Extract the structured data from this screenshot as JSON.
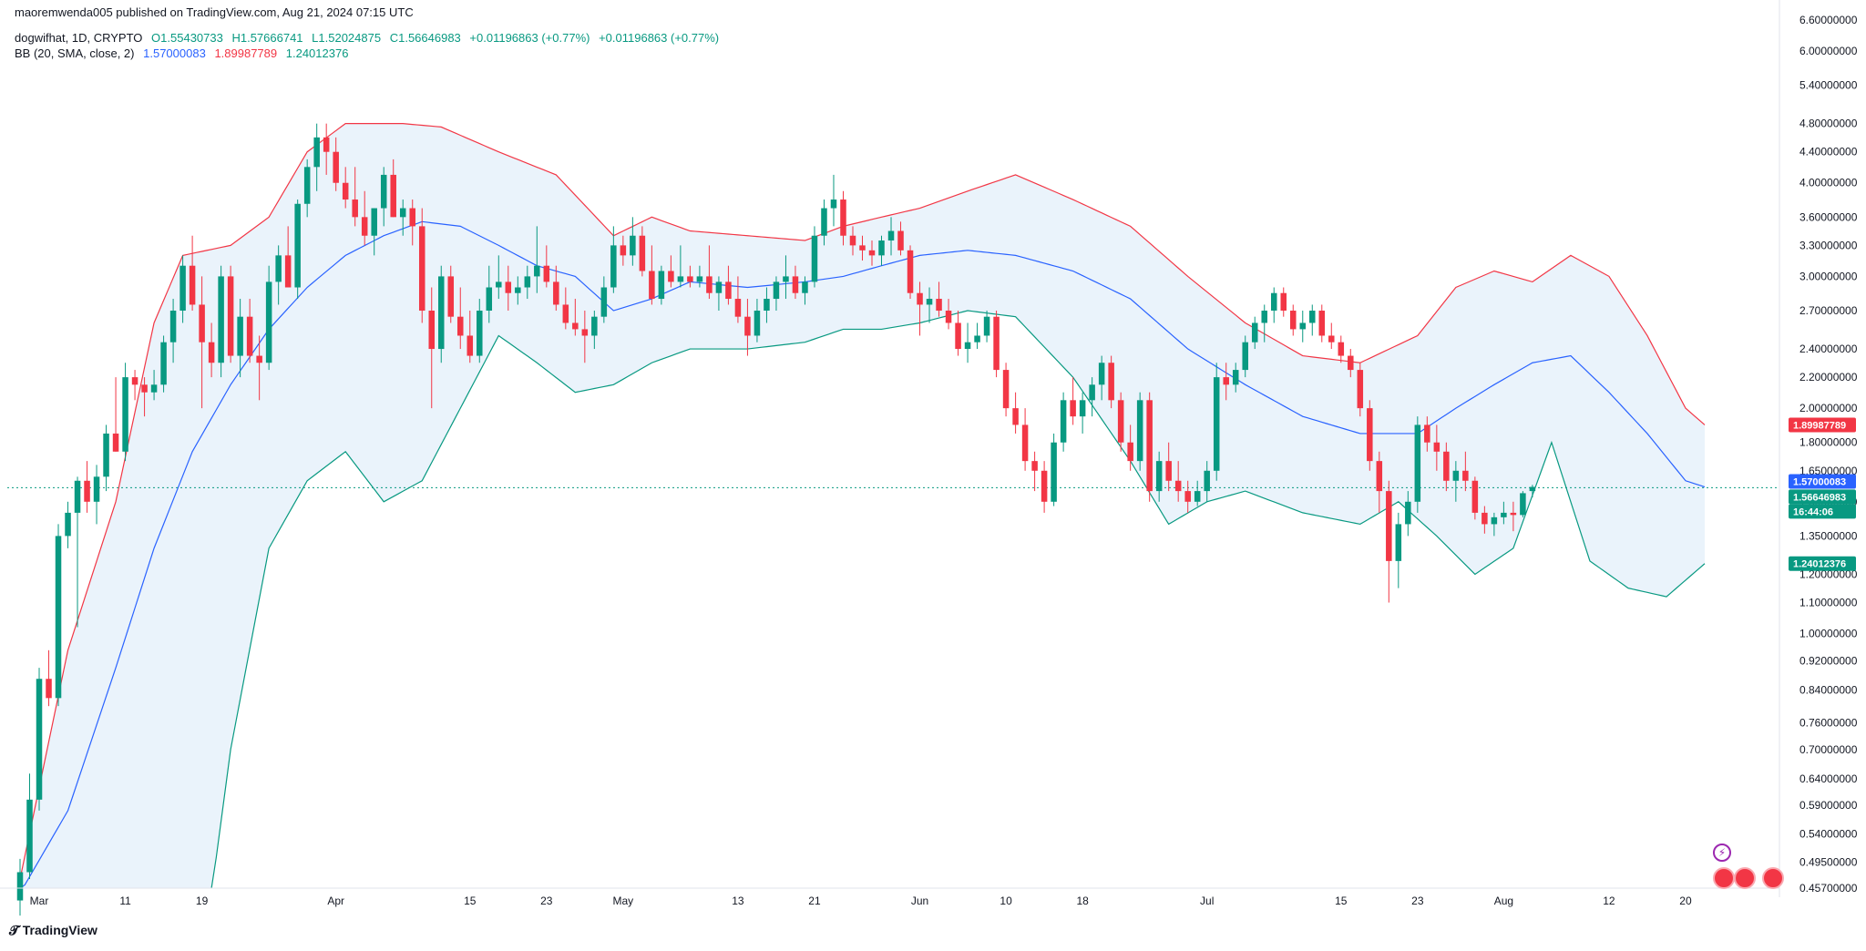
{
  "header": {
    "published": "maoremwenda005 published on TradingView.com, Aug 21, 2024 07:15 UTC",
    "symbol_line": "dogwifhat, 1D, CRYPTO",
    "open": "O1.55430733",
    "high": "H1.57666741",
    "low": "L1.52024875",
    "close": "C1.56646983",
    "change1": "+0.01196863 (+0.77%)",
    "change2": "+0.01196863 (+0.77%)",
    "bb_label": "BB (20, SMA, close, 2)",
    "bb_basis": "1.57000083",
    "bb_upper": "1.89987789",
    "bb_lower": "1.24012376"
  },
  "price_labels": {
    "upper": {
      "text": "1.89987789",
      "color": "#f23645",
      "value": 1.89987789
    },
    "basis": {
      "text": "1.57000083",
      "color": "#2962ff",
      "value": 1.57000083
    },
    "last": {
      "text": "1.56646983",
      "color": "#089981",
      "value": 1.56646983
    },
    "countdown": {
      "text": "16:44:06",
      "color": "#089981"
    },
    "lower": {
      "text": "1.24012376",
      "color": "#089981",
      "value": 1.24012376
    }
  },
  "footer": {
    "brand": "TradingView"
  },
  "colors": {
    "up": "#089981",
    "down": "#f23645",
    "basis": "#2962ff",
    "upper": "#f23645",
    "lower": "#089981",
    "fill": "#eaf3fb"
  },
  "chart_data": {
    "type": "candlestick",
    "scale": "log",
    "y_ticks": [
      0.457,
      0.495,
      0.54,
      0.59,
      0.64,
      0.7,
      0.76,
      0.84,
      0.92,
      1.0,
      1.1,
      1.2,
      1.35,
      1.5,
      1.65,
      1.8,
      2.0,
      2.2,
      2.4,
      2.7,
      3.0,
      3.3,
      3.6,
      4.0,
      4.4,
      4.8,
      5.4,
      6.0,
      6.6
    ],
    "y_tick_labels": [
      "0.45700000",
      "0.49500000",
      "0.54000000",
      "0.59000000",
      "0.64000000",
      "0.70000000",
      "0.76000000",
      "0.84000000",
      "0.92000000",
      "1.00000000",
      "1.10000000",
      "1.20000000",
      "1.35000000",
      "1.50000000",
      "1.65000000",
      "1.80000000",
      "2.00000000",
      "2.20000000",
      "2.40000000",
      "2.70000000",
      "3.00000000",
      "3.30000000",
      "3.60000000",
      "4.00000000",
      "4.40000000",
      "4.80000000",
      "5.40000000",
      "6.00000000",
      "6.60000000"
    ],
    "x_labels": [
      {
        "label": "Mar",
        "day": 2
      },
      {
        "label": "11",
        "day": 11
      },
      {
        "label": "19",
        "day": 19
      },
      {
        "label": "Apr",
        "day": 33
      },
      {
        "label": "15",
        "day": 47
      },
      {
        "label": "23",
        "day": 55
      },
      {
        "label": "May",
        "day": 63
      },
      {
        "label": "13",
        "day": 75
      },
      {
        "label": "21",
        "day": 83
      },
      {
        "label": "Jun",
        "day": 94
      },
      {
        "label": "10",
        "day": 103
      },
      {
        "label": "18",
        "day": 111
      },
      {
        "label": "Jul",
        "day": 124
      },
      {
        "label": "15",
        "day": 138
      },
      {
        "label": "23",
        "day": 146
      },
      {
        "label": "Aug",
        "day": 155
      },
      {
        "label": "12",
        "day": 166
      },
      {
        "label": "20",
        "day": 174
      }
    ],
    "x_range": [
      0,
      176
    ],
    "ohlc_days_from": "Feb 29",
    "ohlc": [
      [
        0.44,
        0.5,
        0.42,
        0.48
      ],
      [
        0.48,
        0.65,
        0.47,
        0.6
      ],
      [
        0.6,
        0.9,
        0.58,
        0.87
      ],
      [
        0.87,
        0.95,
        0.8,
        0.82
      ],
      [
        0.82,
        1.4,
        0.8,
        1.35
      ],
      [
        1.35,
        1.5,
        1.3,
        1.45
      ],
      [
        1.45,
        1.62,
        1.02,
        1.6
      ],
      [
        1.6,
        1.7,
        1.45,
        1.5
      ],
      [
        1.5,
        1.68,
        1.4,
        1.62
      ],
      [
        1.62,
        1.9,
        1.55,
        1.85
      ],
      [
        1.85,
        2.2,
        1.75,
        1.75
      ],
      [
        1.75,
        2.3,
        1.7,
        2.2
      ],
      [
        2.2,
        2.25,
        2.05,
        2.15
      ],
      [
        2.15,
        2.2,
        1.95,
        2.1
      ],
      [
        2.1,
        2.25,
        2.05,
        2.15
      ],
      [
        2.15,
        2.5,
        2.1,
        2.45
      ],
      [
        2.45,
        2.8,
        2.3,
        2.7
      ],
      [
        2.7,
        3.2,
        2.6,
        3.1
      ],
      [
        3.1,
        3.4,
        2.7,
        2.75
      ],
      [
        2.75,
        3.0,
        2.0,
        2.45
      ],
      [
        2.45,
        2.6,
        2.2,
        2.3
      ],
      [
        2.3,
        3.1,
        2.2,
        3.0
      ],
      [
        3.0,
        3.1,
        2.3,
        2.35
      ],
      [
        2.35,
        2.8,
        2.2,
        2.65
      ],
      [
        2.65,
        2.8,
        2.3,
        2.35
      ],
      [
        2.35,
        2.5,
        2.05,
        2.3
      ],
      [
        2.3,
        3.1,
        2.25,
        2.95
      ],
      [
        2.95,
        3.3,
        2.75,
        3.2
      ],
      [
        3.2,
        3.5,
        2.9,
        2.9
      ],
      [
        2.9,
        3.8,
        2.8,
        3.75
      ],
      [
        3.75,
        4.3,
        3.6,
        4.2
      ],
      [
        4.2,
        4.8,
        3.9,
        4.6
      ],
      [
        4.6,
        4.8,
        4.1,
        4.4
      ],
      [
        4.4,
        4.6,
        3.9,
        4.0
      ],
      [
        4.0,
        4.2,
        3.7,
        3.8
      ],
      [
        3.8,
        4.2,
        3.5,
        3.6
      ],
      [
        3.6,
        3.9,
        3.3,
        3.4
      ],
      [
        3.4,
        3.7,
        3.2,
        3.7
      ],
      [
        3.7,
        4.2,
        3.5,
        4.1
      ],
      [
        4.1,
        4.3,
        3.6,
        3.6
      ],
      [
        3.6,
        3.8,
        3.4,
        3.7
      ],
      [
        3.7,
        3.8,
        3.3,
        3.5
      ],
      [
        3.5,
        3.7,
        2.6,
        2.7
      ],
      [
        2.7,
        2.9,
        2.0,
        2.4
      ],
      [
        2.4,
        3.1,
        2.3,
        3.0
      ],
      [
        3.0,
        3.1,
        2.6,
        2.65
      ],
      [
        2.65,
        2.9,
        2.4,
        2.5
      ],
      [
        2.5,
        2.7,
        2.3,
        2.35
      ],
      [
        2.35,
        2.8,
        2.3,
        2.7
      ],
      [
        2.7,
        3.1,
        2.6,
        2.9
      ],
      [
        2.9,
        3.2,
        2.8,
        2.95
      ],
      [
        2.95,
        3.1,
        2.7,
        2.85
      ],
      [
        2.85,
        3.0,
        2.75,
        2.9
      ],
      [
        2.9,
        3.1,
        2.8,
        3.0
      ],
      [
        3.0,
        3.5,
        2.85,
        3.1
      ],
      [
        3.1,
        3.3,
        2.9,
        2.95
      ],
      [
        2.95,
        3.1,
        2.7,
        2.75
      ],
      [
        2.75,
        2.9,
        2.55,
        2.6
      ],
      [
        2.6,
        2.8,
        2.5,
        2.55
      ],
      [
        2.55,
        2.7,
        2.3,
        2.5
      ],
      [
        2.5,
        2.7,
        2.4,
        2.65
      ],
      [
        2.65,
        3.0,
        2.6,
        2.9
      ],
      [
        2.9,
        3.5,
        2.85,
        3.3
      ],
      [
        3.3,
        3.4,
        3.1,
        3.2
      ],
      [
        3.2,
        3.6,
        3.1,
        3.4
      ],
      [
        3.4,
        3.5,
        3.0,
        3.05
      ],
      [
        3.05,
        3.3,
        2.75,
        2.8
      ],
      [
        2.8,
        3.1,
        2.75,
        3.05
      ],
      [
        3.05,
        3.2,
        2.9,
        2.95
      ],
      [
        2.95,
        3.3,
        2.9,
        3.0
      ],
      [
        3.0,
        3.1,
        2.9,
        2.95
      ],
      [
        2.95,
        3.1,
        2.9,
        3.0
      ],
      [
        3.0,
        3.3,
        2.8,
        2.85
      ],
      [
        2.85,
        3.0,
        2.7,
        2.95
      ],
      [
        2.95,
        3.1,
        2.75,
        2.8
      ],
      [
        2.8,
        3.0,
        2.6,
        2.65
      ],
      [
        2.65,
        2.8,
        2.35,
        2.5
      ],
      [
        2.5,
        2.8,
        2.45,
        2.7
      ],
      [
        2.7,
        2.9,
        2.6,
        2.8
      ],
      [
        2.8,
        3.0,
        2.7,
        2.95
      ],
      [
        2.95,
        3.2,
        2.8,
        3.0
      ],
      [
        3.0,
        3.1,
        2.8,
        2.85
      ],
      [
        2.85,
        3.0,
        2.75,
        2.95
      ],
      [
        2.95,
        3.5,
        2.9,
        3.4
      ],
      [
        3.4,
        3.8,
        3.3,
        3.7
      ],
      [
        3.7,
        4.1,
        3.5,
        3.8
      ],
      [
        3.8,
        3.9,
        3.3,
        3.4
      ],
      [
        3.4,
        3.5,
        3.2,
        3.3
      ],
      [
        3.3,
        3.4,
        3.15,
        3.25
      ],
      [
        3.25,
        3.35,
        3.1,
        3.2
      ],
      [
        3.2,
        3.4,
        3.1,
        3.35
      ],
      [
        3.35,
        3.6,
        3.2,
        3.45
      ],
      [
        3.45,
        3.55,
        3.2,
        3.25
      ],
      [
        3.25,
        3.3,
        2.8,
        2.85
      ],
      [
        2.85,
        2.95,
        2.5,
        2.75
      ],
      [
        2.75,
        2.9,
        2.6,
        2.8
      ],
      [
        2.8,
        2.95,
        2.65,
        2.7
      ],
      [
        2.7,
        2.8,
        2.55,
        2.6
      ],
      [
        2.6,
        2.7,
        2.35,
        2.4
      ],
      [
        2.4,
        2.6,
        2.3,
        2.45
      ],
      [
        2.45,
        2.6,
        2.4,
        2.5
      ],
      [
        2.5,
        2.7,
        2.45,
        2.65
      ],
      [
        2.65,
        2.7,
        2.2,
        2.25
      ],
      [
        2.25,
        2.3,
        1.95,
        2.0
      ],
      [
        2.0,
        2.1,
        1.85,
        1.9
      ],
      [
        1.9,
        2.0,
        1.65,
        1.7
      ],
      [
        1.7,
        1.75,
        1.55,
        1.65
      ],
      [
        1.65,
        1.7,
        1.45,
        1.5
      ],
      [
        1.5,
        1.85,
        1.48,
        1.8
      ],
      [
        1.8,
        2.1,
        1.75,
        2.05
      ],
      [
        2.05,
        2.2,
        1.9,
        1.95
      ],
      [
        1.95,
        2.1,
        1.85,
        2.05
      ],
      [
        2.05,
        2.2,
        1.95,
        2.15
      ],
      [
        2.15,
        2.35,
        2.05,
        2.3
      ],
      [
        2.3,
        2.35,
        2.0,
        2.05
      ],
      [
        2.05,
        2.1,
        1.75,
        1.8
      ],
      [
        1.8,
        1.9,
        1.65,
        1.7
      ],
      [
        1.7,
        2.1,
        1.65,
        2.05
      ],
      [
        2.05,
        2.1,
        1.5,
        1.55
      ],
      [
        1.55,
        1.75,
        1.5,
        1.7
      ],
      [
        1.7,
        1.8,
        1.55,
        1.6
      ],
      [
        1.6,
        1.7,
        1.5,
        1.55
      ],
      [
        1.55,
        1.6,
        1.45,
        1.5
      ],
      [
        1.5,
        1.6,
        1.48,
        1.55
      ],
      [
        1.55,
        1.7,
        1.5,
        1.65
      ],
      [
        1.65,
        2.3,
        1.6,
        2.2
      ],
      [
        2.2,
        2.3,
        2.05,
        2.15
      ],
      [
        2.15,
        2.3,
        2.1,
        2.25
      ],
      [
        2.25,
        2.5,
        2.2,
        2.45
      ],
      [
        2.45,
        2.65,
        2.4,
        2.6
      ],
      [
        2.6,
        2.75,
        2.45,
        2.7
      ],
      [
        2.7,
        2.9,
        2.6,
        2.85
      ],
      [
        2.85,
        2.9,
        2.65,
        2.7
      ],
      [
        2.7,
        2.75,
        2.5,
        2.55
      ],
      [
        2.55,
        2.7,
        2.45,
        2.6
      ],
      [
        2.6,
        2.75,
        2.5,
        2.7
      ],
      [
        2.7,
        2.75,
        2.45,
        2.5
      ],
      [
        2.5,
        2.6,
        2.4,
        2.45
      ],
      [
        2.45,
        2.5,
        2.3,
        2.35
      ],
      [
        2.35,
        2.4,
        2.2,
        2.25
      ],
      [
        2.25,
        2.3,
        1.95,
        2.0
      ],
      [
        2.0,
        2.05,
        1.65,
        1.7
      ],
      [
        1.7,
        1.75,
        1.45,
        1.55
      ],
      [
        1.55,
        1.6,
        1.1,
        1.25
      ],
      [
        1.25,
        1.45,
        1.15,
        1.4
      ],
      [
        1.4,
        1.55,
        1.35,
        1.5
      ],
      [
        1.5,
        1.95,
        1.45,
        1.9
      ],
      [
        1.9,
        1.95,
        1.75,
        1.8
      ],
      [
        1.8,
        1.9,
        1.65,
        1.75
      ],
      [
        1.75,
        1.8,
        1.55,
        1.6
      ],
      [
        1.6,
        1.7,
        1.5,
        1.65
      ],
      [
        1.65,
        1.75,
        1.55,
        1.6
      ],
      [
        1.6,
        1.62,
        1.42,
        1.45
      ],
      [
        1.45,
        1.48,
        1.36,
        1.4
      ],
      [
        1.4,
        1.45,
        1.35,
        1.43
      ],
      [
        1.43,
        1.5,
        1.4,
        1.45
      ],
      [
        1.45,
        1.5,
        1.37,
        1.44
      ],
      [
        1.44,
        1.55,
        1.43,
        1.54
      ],
      [
        1.55,
        1.58,
        1.52,
        1.57
      ]
    ],
    "bb_upper_anchors": [
      [
        0,
        0.47
      ],
      [
        5,
        0.95
      ],
      [
        10,
        1.5
      ],
      [
        14,
        2.6
      ],
      [
        17,
        3.2
      ],
      [
        22,
        3.3
      ],
      [
        26,
        3.6
      ],
      [
        30,
        4.4
      ],
      [
        34,
        4.8
      ],
      [
        40,
        4.8
      ],
      [
        44,
        4.75
      ],
      [
        50,
        4.4
      ],
      [
        56,
        4.1
      ],
      [
        62,
        3.4
      ],
      [
        66,
        3.6
      ],
      [
        70,
        3.45
      ],
      [
        76,
        3.4
      ],
      [
        82,
        3.35
      ],
      [
        86,
        3.5
      ],
      [
        90,
        3.6
      ],
      [
        94,
        3.7
      ],
      [
        99,
        3.9
      ],
      [
        104,
        4.1
      ],
      [
        110,
        3.8
      ],
      [
        116,
        3.5
      ],
      [
        122,
        3.0
      ],
      [
        128,
        2.6
      ],
      [
        134,
        2.35
      ],
      [
        140,
        2.3
      ],
      [
        146,
        2.5
      ],
      [
        150,
        2.9
      ],
      [
        154,
        3.05
      ],
      [
        158,
        2.95
      ],
      [
        162,
        3.2
      ],
      [
        166,
        3.0
      ],
      [
        170,
        2.5
      ],
      [
        174,
        2.0
      ],
      [
        176,
        1.9
      ]
    ],
    "bb_basis_anchors": [
      [
        0,
        0.45
      ],
      [
        5,
        0.58
      ],
      [
        10,
        0.9
      ],
      [
        14,
        1.3
      ],
      [
        18,
        1.75
      ],
      [
        22,
        2.15
      ],
      [
        26,
        2.55
      ],
      [
        30,
        2.9
      ],
      [
        34,
        3.2
      ],
      [
        38,
        3.4
      ],
      [
        42,
        3.55
      ],
      [
        46,
        3.5
      ],
      [
        50,
        3.3
      ],
      [
        54,
        3.1
      ],
      [
        58,
        3.0
      ],
      [
        62,
        2.7
      ],
      [
        66,
        2.8
      ],
      [
        70,
        2.95
      ],
      [
        76,
        2.9
      ],
      [
        82,
        2.95
      ],
      [
        86,
        3.0
      ],
      [
        90,
        3.1
      ],
      [
        94,
        3.2
      ],
      [
        99,
        3.25
      ],
      [
        104,
        3.2
      ],
      [
        110,
        3.05
      ],
      [
        116,
        2.8
      ],
      [
        122,
        2.4
      ],
      [
        128,
        2.15
      ],
      [
        134,
        1.95
      ],
      [
        140,
        1.85
      ],
      [
        146,
        1.85
      ],
      [
        150,
        2.0
      ],
      [
        154,
        2.15
      ],
      [
        158,
        2.3
      ],
      [
        162,
        2.35
      ],
      [
        166,
        2.1
      ],
      [
        170,
        1.85
      ],
      [
        174,
        1.6
      ],
      [
        176,
        1.57
      ]
    ],
    "bb_lower_anchors": [
      [
        20,
        0.45
      ],
      [
        22,
        0.7
      ],
      [
        26,
        1.3
      ],
      [
        30,
        1.6
      ],
      [
        34,
        1.75
      ],
      [
        38,
        1.5
      ],
      [
        42,
        1.6
      ],
      [
        46,
        2.0
      ],
      [
        50,
        2.5
      ],
      [
        54,
        2.3
      ],
      [
        58,
        2.1
      ],
      [
        62,
        2.15
      ],
      [
        66,
        2.3
      ],
      [
        70,
        2.4
      ],
      [
        76,
        2.4
      ],
      [
        82,
        2.45
      ],
      [
        86,
        2.55
      ],
      [
        90,
        2.55
      ],
      [
        94,
        2.6
      ],
      [
        99,
        2.7
      ],
      [
        104,
        2.65
      ],
      [
        110,
        2.2
      ],
      [
        116,
        1.7
      ],
      [
        120,
        1.4
      ],
      [
        124,
        1.5
      ],
      [
        128,
        1.55
      ],
      [
        134,
        1.45
      ],
      [
        140,
        1.4
      ],
      [
        144,
        1.5
      ],
      [
        148,
        1.35
      ],
      [
        152,
        1.2
      ],
      [
        156,
        1.3
      ],
      [
        160,
        1.8
      ],
      [
        164,
        1.25
      ],
      [
        168,
        1.15
      ],
      [
        172,
        1.12
      ],
      [
        176,
        1.24
      ]
    ]
  }
}
